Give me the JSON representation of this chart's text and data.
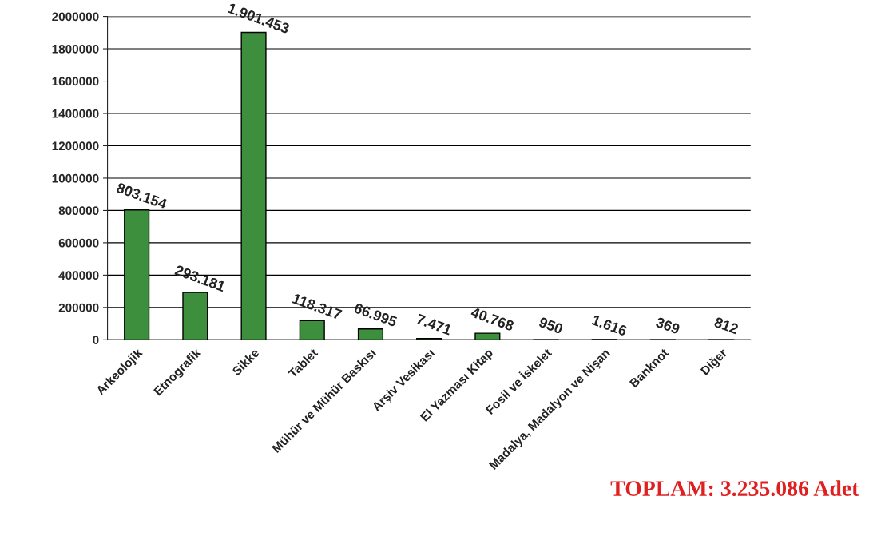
{
  "chart_data": {
    "type": "bar",
    "categories": [
      "Arkeolojik",
      "Etnografik",
      "Sikke",
      "Tablet",
      "Mühür ve Mühür Baskısı",
      "Arşiv Vesikası",
      "El Yazması Kitap",
      "Fosil ve İskelet",
      "Madalya, Madalyon ve Nişan",
      "Banknot",
      "Diğer"
    ],
    "values": [
      803154,
      293181,
      1901453,
      118317,
      66995,
      7471,
      40768,
      950,
      1616,
      369,
      812
    ],
    "value_labels": [
      "803.154",
      "293.181",
      "1.901.453",
      "118.317",
      "66.995",
      "7.471",
      "40.768",
      "950",
      "1.616",
      "369",
      "812"
    ],
    "color": "#3d8f3d",
    "ylim": [
      0,
      2000000
    ],
    "yticks": [
      0,
      200000,
      400000,
      600000,
      800000,
      1000000,
      1200000,
      1400000,
      1600000,
      1800000,
      2000000
    ],
    "grid": "y",
    "annotations": [
      "TOPLAM: 3.235.086 Adet"
    ]
  }
}
